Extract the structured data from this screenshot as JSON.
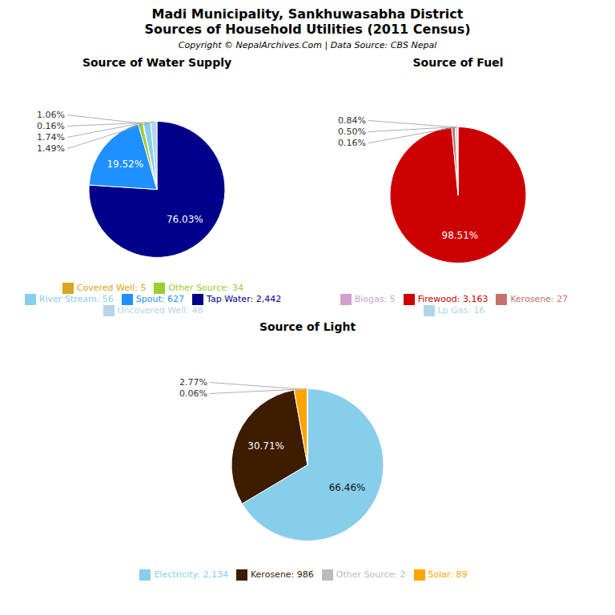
{
  "title": "Madi Municipality, Sankhuwasabha District",
  "subtitle": "Sources of Household Utilities (2011 Census)",
  "annotations": [
    "Copyright © NepalArchives.Com | Data Source: CBS Nepal"
  ],
  "chart_data": [
    {
      "type": "pie",
      "title": "Source of Water Supply",
      "categories": [
        "Tap Water: 2,442",
        "Spout: 627",
        "Other Source: 34",
        "Covered Well: 5",
        "River Stream: 56",
        "Uncovered Well: 48"
      ],
      "values": [
        76.03,
        19.52,
        1.06,
        0.16,
        1.74,
        1.49
      ],
      "value_labels": [
        "76.03%",
        "19.52%",
        "1.06%",
        "0.16%",
        "1.74%",
        "1.49%"
      ],
      "colors": [
        "#00008B",
        "#1E90FF",
        "#9ACD32",
        "#DAA520",
        "#87CEEB",
        "#B8D4E8"
      ],
      "data_labels": true,
      "legend": "bottom"
    },
    {
      "type": "pie",
      "title": "Source of Fuel",
      "categories": [
        "Firewood: 3,163",
        "Kerosene: 27",
        "Lp Gas: 16",
        "Biogas: 5"
      ],
      "values": [
        98.51,
        0.84,
        0.5,
        0.16
      ],
      "value_labels": [
        "98.51%",
        "0.84%",
        "0.50%",
        "0.16%"
      ],
      "colors": [
        "#CC0000",
        "#C87070",
        "#ADD8E6",
        "#D0A0D0"
      ],
      "data_labels": true,
      "legend": "bottom"
    },
    {
      "type": "pie",
      "title": "Source of Light",
      "categories": [
        "Electricity: 2,134",
        "Kerosene: 986",
        "Solar: 89",
        "Other Source: 2"
      ],
      "values": [
        66.46,
        30.71,
        2.77,
        0.06
      ],
      "value_labels": [
        "66.46%",
        "30.71%",
        "2.77%",
        "0.06%"
      ],
      "colors": [
        "#87CEEB",
        "#3D1C00",
        "#FFA500",
        "#BBBBBB"
      ],
      "data_labels": true,
      "legend": "bottom"
    }
  ]
}
